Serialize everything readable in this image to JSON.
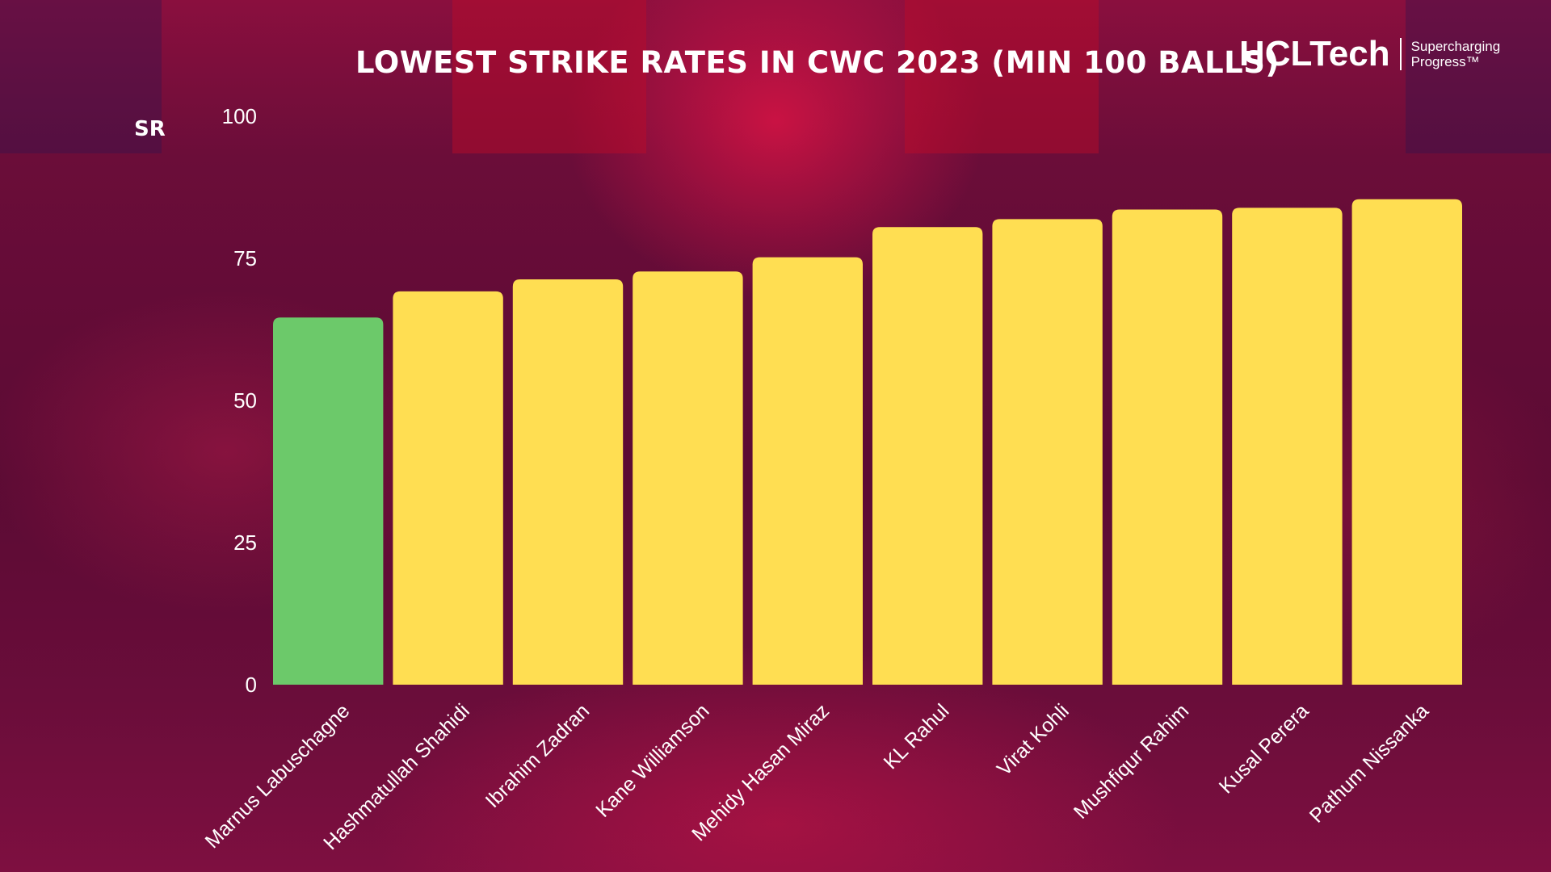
{
  "header": {
    "title": "LOWEST STRIKE RATES IN CWC 2023 (MIN 100 BALLS)"
  },
  "logo": {
    "brand": "HCLTech",
    "tagline": "Supercharging Progress™"
  },
  "colors": {
    "highlight_bar": "#6cc96a",
    "bar": "#ffde52",
    "text": "#ffffff"
  },
  "chart_data": {
    "type": "bar",
    "title": "LOWEST STRIKE RATES IN CWC 2023 (MIN 100 BALLS)",
    "xlabel": "",
    "ylabel": "SR",
    "ylim": [
      0,
      100
    ],
    "yticks": [
      0,
      25,
      50,
      75,
      100
    ],
    "grid": false,
    "legend": "none",
    "categories": [
      "Marnus Labuschagne",
      "Hashmatullah Shahidi",
      "Ibrahim Zadran",
      "Kane Williamson",
      "Mehidy Hasan Miraz",
      "KL Rahul",
      "Virat Kohli",
      "Mushfiqur Rahim",
      "Kusal Perera",
      "Pathum Nissanka"
    ],
    "values": [
      64.6,
      69.2,
      71.3,
      72.7,
      75.2,
      80.5,
      81.9,
      83.6,
      83.9,
      85.4
    ],
    "highlight_index": 0
  }
}
